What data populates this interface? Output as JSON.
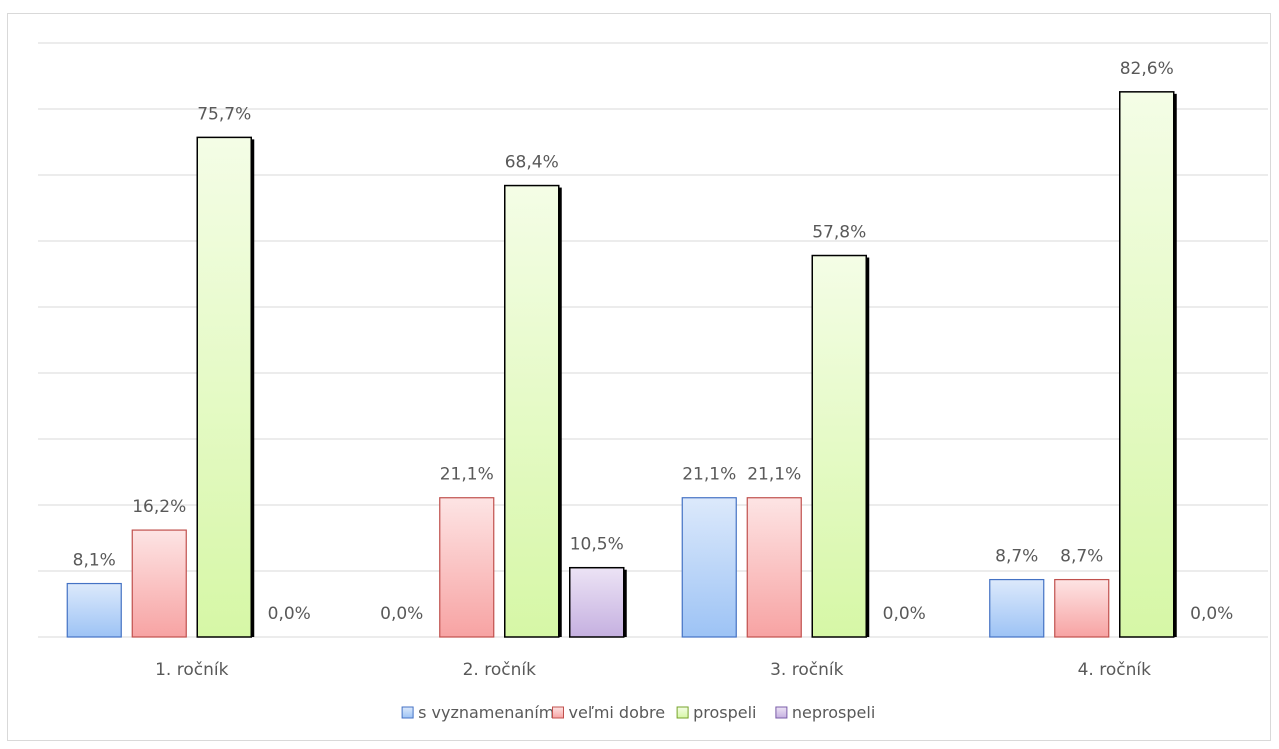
{
  "chart_data": {
    "type": "bar",
    "categories": [
      "1. ročník",
      "2. ročník",
      "3. ročník",
      "4. ročník"
    ],
    "series": [
      {
        "name": "s vyznamenaním",
        "values": [
          8.1,
          0.0,
          21.1,
          8.7
        ],
        "labels": [
          "8,1%",
          "0,0%",
          "21,1%",
          "8,7%"
        ],
        "color_top": "#dce9fb",
        "color_bottom": "#9dc3f5",
        "stroke": "#4472c4"
      },
      {
        "name": "veľmi dobre",
        "values": [
          16.2,
          21.1,
          21.1,
          8.7
        ],
        "labels": [
          "16,2%",
          "21,1%",
          "21,1%",
          "8,7%"
        ],
        "color_top": "#fde4e4",
        "color_bottom": "#f7a3a3",
        "stroke": "#c0504d"
      },
      {
        "name": "prospeli",
        "values": [
          75.7,
          68.4,
          57.8,
          82.6
        ],
        "labels": [
          "75,7%",
          "68,4%",
          "57,8%",
          "82,6%"
        ],
        "color_top": "#f4fde6",
        "color_bottom": "#d6f7a6",
        "stroke": "#000000"
      },
      {
        "name": "neprospeli",
        "values": [
          0.0,
          10.5,
          0.0,
          0.0
        ],
        "labels": [
          "0,0%",
          "10,5%",
          "0,0%",
          "0,0%"
        ],
        "color_top": "#ece3f5",
        "color_bottom": "#c5b0e0",
        "stroke": "#000000"
      }
    ],
    "ylim": [
      0,
      90
    ],
    "grid": true,
    "legend": "bottom",
    "title": "",
    "xlabel": "",
    "ylabel": ""
  }
}
